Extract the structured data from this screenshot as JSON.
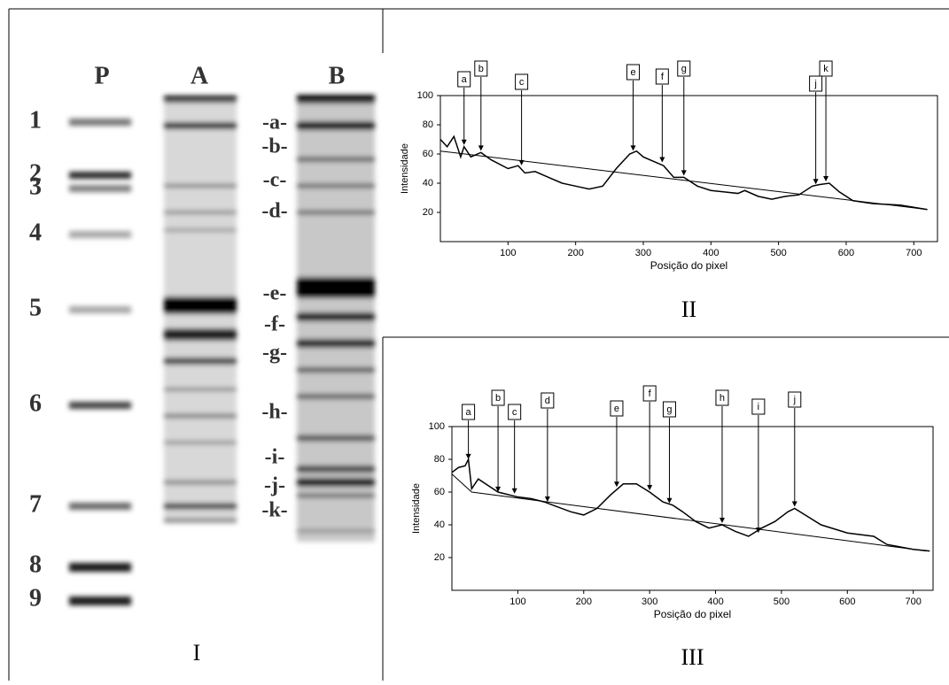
{
  "gel": {
    "panel_label": "I",
    "lanes": [
      "P",
      "A",
      "B"
    ],
    "markers": [
      "1",
      "2",
      "3",
      "4",
      "5",
      "6",
      "7",
      "8",
      "9"
    ],
    "bands": [
      "-a-",
      "-b-",
      "-c-",
      "-d-",
      "-e-",
      "-f-",
      "-g-",
      "-h-",
      "-i-",
      "-j-",
      "-k-"
    ]
  },
  "chart_data": [
    {
      "type": "line",
      "panel_label": "II",
      "x_label": "Posição do pixel",
      "y_label": "Intensidade",
      "xlim": [
        0,
        735
      ],
      "ylim": [
        0,
        100
      ],
      "xticks": [
        100,
        200,
        300,
        400,
        500,
        600,
        700
      ],
      "yticks": [
        20,
        40,
        60,
        80,
        100
      ],
      "series": [
        {
          "color": "#000000",
          "x": [
            0,
            10,
            20,
            30,
            35,
            45,
            60,
            75,
            100,
            115,
            125,
            140,
            160,
            180,
            200,
            220,
            240,
            260,
            280,
            290,
            300,
            320,
            330,
            345,
            360,
            380,
            400,
            420,
            440,
            450,
            470,
            490,
            510,
            530,
            550,
            560,
            575,
            590,
            610,
            640,
            680,
            720
          ],
          "values": [
            70,
            65,
            72,
            58,
            65,
            58,
            61,
            56,
            50,
            52,
            47,
            48,
            44,
            40,
            38,
            36,
            38,
            50,
            60,
            62,
            58,
            54,
            52,
            44,
            44,
            38,
            35,
            34,
            33,
            35,
            31,
            29,
            31,
            32,
            38,
            39,
            40,
            34,
            28,
            26,
            25,
            22
          ]
        },
        {
          "color": "#000000",
          "x": [
            0,
            720
          ],
          "values": [
            62,
            22
          ]
        }
      ],
      "annotations": [
        {
          "text": "a",
          "x": 35,
          "y": 65
        },
        {
          "text": "b",
          "x": 60,
          "y": 61
        },
        {
          "text": "c",
          "x": 120,
          "y": 51
        },
        {
          "text": "e",
          "x": 285,
          "y": 61
        },
        {
          "text": "f",
          "x": 328,
          "y": 53
        },
        {
          "text": "g",
          "x": 360,
          "y": 44
        },
        {
          "text": "j",
          "x": 555,
          "y": 38
        },
        {
          "text": "k",
          "x": 570,
          "y": 40
        }
      ]
    },
    {
      "type": "line",
      "panel_label": "III",
      "x_label": "Posição do pixel",
      "y_label": "Intensidade",
      "xlim": [
        0,
        730
      ],
      "ylim": [
        0,
        100
      ],
      "xticks": [
        100,
        200,
        300,
        400,
        500,
        600,
        700
      ],
      "yticks": [
        20,
        40,
        60,
        80,
        100
      ],
      "series": [
        {
          "color": "#000000",
          "x": [
            0,
            10,
            20,
            25,
            30,
            40,
            55,
            70,
            100,
            120,
            140,
            160,
            180,
            200,
            220,
            240,
            260,
            280,
            300,
            320,
            335,
            350,
            370,
            390,
            410,
            430,
            450,
            470,
            490,
            510,
            520,
            540,
            560,
            600,
            640,
            660,
            700,
            725
          ],
          "values": [
            72,
            75,
            76,
            80,
            62,
            68,
            64,
            60,
            57,
            56,
            54,
            51,
            48,
            46,
            50,
            58,
            65,
            65,
            60,
            54,
            52,
            48,
            42,
            38,
            40,
            36,
            33,
            38,
            42,
            48,
            50,
            45,
            40,
            35,
            33,
            28,
            25,
            24
          ]
        },
        {
          "color": "#000000",
          "x": [
            0,
            30,
            720
          ],
          "values": [
            71,
            60,
            24
          ]
        }
      ],
      "annotations": [
        {
          "text": "a",
          "x": 25,
          "y": 79
        },
        {
          "text": "b",
          "x": 70,
          "y": 59
        },
        {
          "text": "c",
          "x": 95,
          "y": 58
        },
        {
          "text": "d",
          "x": 145,
          "y": 53
        },
        {
          "text": "e",
          "x": 250,
          "y": 62
        },
        {
          "text": "f",
          "x": 300,
          "y": 60
        },
        {
          "text": "g",
          "x": 330,
          "y": 52
        },
        {
          "text": "h",
          "x": 410,
          "y": 40
        },
        {
          "text": "i",
          "x": 465,
          "y": 34
        },
        {
          "text": "j",
          "x": 520,
          "y": 50
        }
      ]
    }
  ]
}
